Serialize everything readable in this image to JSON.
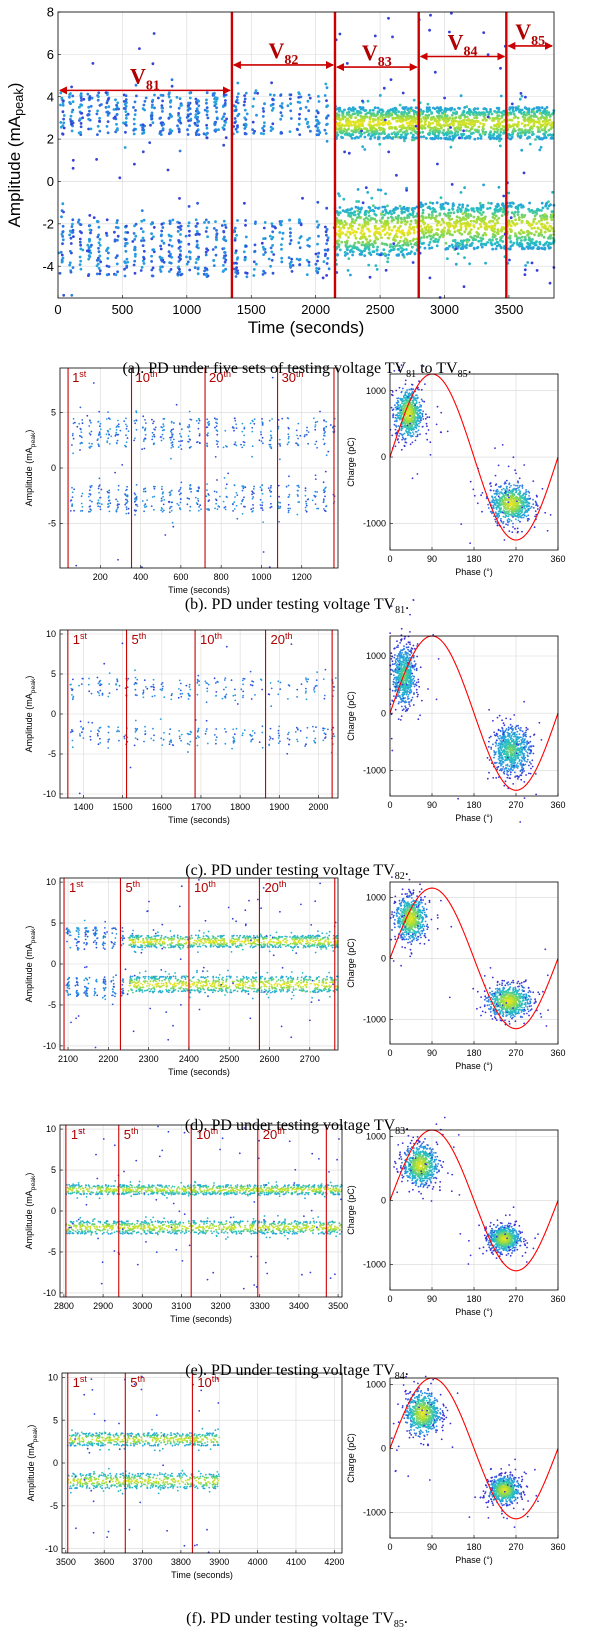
{
  "captions": {
    "a": {
      "prefix": "(a). PD under five sets of testing voltage TV",
      "s1": "81",
      "mid": " to TV",
      "s2": "85",
      "suffix": "."
    },
    "b": {
      "prefix": "(b). PD under testing voltage TV",
      "sub": "81",
      "suffix": "."
    },
    "c": {
      "prefix": "(c). PD under testing voltage TV",
      "sub": "82",
      "suffix": "."
    },
    "d": {
      "prefix": "(d). PD under testing voltage TV",
      "sub": "83",
      "suffix": "."
    },
    "e": {
      "prefix": "(e). PD under testing voltage TV",
      "sub": "84",
      "suffix": "."
    },
    "f": {
      "prefix": "(f). PD under testing voltage TV",
      "sub": "85",
      "suffix": "."
    }
  },
  "colors": {
    "marker_line": "#cc0000",
    "sine": "#ff0000",
    "grid": "#d8d8d8",
    "dense": "#f4e61e",
    "mid": "#27c2bd",
    "sparse": "#3a2bd6",
    "label_red": "#b00000"
  },
  "chart_data": [
    {
      "id": "a",
      "type": "scatter",
      "xlabel": "Time (seconds)",
      "ylabel": "Amplitude (mA",
      "ylabel_sub": "peak",
      "ylabel_end": ")",
      "xlim": [
        0,
        3850
      ],
      "ylim": [
        -5.5,
        8
      ],
      "xticks": [
        0,
        500,
        1000,
        1500,
        2000,
        2500,
        3000,
        3500
      ],
      "yticks": [
        -4,
        -2,
        0,
        2,
        4,
        6,
        8
      ],
      "markers": [
        1350,
        2150,
        2800,
        3480
      ],
      "stages": [
        {
          "label": "V",
          "sub": "81",
          "start": 0,
          "end": 1350
        },
        {
          "label": "V",
          "sub": "82",
          "start": 1350,
          "end": 2150
        },
        {
          "label": "V",
          "sub": "83",
          "start": 2150,
          "end": 2800
        },
        {
          "label": "V",
          "sub": "84",
          "start": 2800,
          "end": 3480
        },
        {
          "label": "V",
          "sub": "85",
          "start": 3480,
          "end": 3850
        }
      ],
      "bands": [
        {
          "start": 0,
          "end": 1350,
          "pos": [
            2.2,
            4.2
          ],
          "neg": [
            -4.5,
            -1.8
          ],
          "density": 0.35,
          "clustered": true
        },
        {
          "start": 1350,
          "end": 2150,
          "pos": [
            2.2,
            4.2
          ],
          "neg": [
            -4.5,
            -1.8
          ],
          "density": 0.25,
          "clustered": true
        },
        {
          "start": 2150,
          "end": 2800,
          "pos": [
            2.0,
            3.5
          ],
          "neg": [
            -3.5,
            -1.2
          ],
          "density": 1.0,
          "clustered": false
        },
        {
          "start": 2800,
          "end": 3480,
          "pos": [
            2.0,
            3.5
          ],
          "neg": [
            -3.2,
            -1.0
          ],
          "density": 0.9,
          "clustered": false
        },
        {
          "start": 3480,
          "end": 3850,
          "pos": [
            2.0,
            3.5
          ],
          "neg": [
            -3.2,
            -1.0
          ],
          "density": 0.9,
          "clustered": false
        }
      ]
    },
    {
      "id": "b",
      "type": "scatter",
      "xlabel": "Time (seconds)",
      "ylabel": "Amplitude (mA",
      "ylabel_sub": "peak",
      "ylabel_end": ")",
      "xlim": [
        0,
        1380
      ],
      "ylim": [
        -9,
        9
      ],
      "xticks": [
        200,
        400,
        600,
        800,
        1000,
        1200
      ],
      "yticks": [
        -5,
        0,
        5
      ],
      "markers": [
        40,
        355,
        720,
        1080,
        1360
      ],
      "cycle_labels": [
        {
          "n": "1",
          "suf": "st",
          "x": 45
        },
        {
          "n": "10",
          "suf": "th",
          "x": 360
        },
        {
          "n": "20",
          "suf": "th",
          "x": 725
        },
        {
          "n": "30",
          "suf": "th",
          "x": 1085
        }
      ],
      "bands": [
        {
          "start": 40,
          "end": 1360,
          "pos": [
            1.8,
            4.5
          ],
          "neg": [
            -4.0,
            -1.5
          ],
          "density": 0.35,
          "clustered": true
        }
      ]
    },
    {
      "id": "c",
      "type": "scatter",
      "xlabel": "Time (seconds)",
      "ylabel": "Amplitude (mA",
      "ylabel_sub": "peak",
      "ylabel_end": ")",
      "xlim": [
        1340,
        2050
      ],
      "ylim": [
        -10.5,
        10.5
      ],
      "xticks": [
        1400,
        1500,
        1600,
        1700,
        1800,
        1900,
        2000
      ],
      "yticks": [
        -10,
        -5,
        0,
        5,
        10
      ],
      "markers": [
        1360,
        1510,
        1685,
        1865,
        2035
      ],
      "cycle_labels": [
        {
          "n": "1",
          "suf": "st",
          "x": 1365
        },
        {
          "n": "5",
          "suf": "th",
          "x": 1515
        },
        {
          "n": "10",
          "suf": "th",
          "x": 1690
        },
        {
          "n": "20",
          "suf": "th",
          "x": 1870
        }
      ],
      "bands": [
        {
          "start": 1360,
          "end": 2050,
          "pos": [
            1.8,
            4.5
          ],
          "neg": [
            -4.0,
            -1.5
          ],
          "density": 0.18,
          "clustered": true
        }
      ]
    },
    {
      "id": "d",
      "type": "scatter",
      "xlabel": "Time (seconds)",
      "ylabel": "Amplitude (mA",
      "ylabel_sub": "peak",
      "ylabel_end": ")",
      "xlim": [
        2080,
        2770
      ],
      "ylim": [
        -10.5,
        10.5
      ],
      "xticks": [
        2100,
        2200,
        2300,
        2400,
        2500,
        2600,
        2700
      ],
      "yticks": [
        -10,
        -5,
        0,
        5,
        10
      ],
      "markers": [
        2090,
        2230,
        2400,
        2575,
        2762
      ],
      "cycle_labels": [
        {
          "n": "1",
          "suf": "st",
          "x": 2095
        },
        {
          "n": "5",
          "suf": "th",
          "x": 2235
        },
        {
          "n": "10",
          "suf": "th",
          "x": 2405
        },
        {
          "n": "20",
          "suf": "th",
          "x": 2580
        }
      ],
      "bands": [
        {
          "start": 2090,
          "end": 2250,
          "pos": [
            1.8,
            4.5
          ],
          "neg": [
            -4.0,
            -1.5
          ],
          "density": 0.5,
          "clustered": true
        },
        {
          "start": 2250,
          "end": 2770,
          "pos": [
            2.0,
            3.5
          ],
          "neg": [
            -3.5,
            -1.5
          ],
          "density": 1.0,
          "clustered": false
        }
      ]
    },
    {
      "id": "e",
      "type": "scatter",
      "xlabel": "Time (seconds)",
      "ylabel": "Amplitude (mA",
      "ylabel_sub": "peak",
      "ylabel_end": ")",
      "xlim": [
        2790,
        3510
      ],
      "ylim": [
        -10.5,
        10.5
      ],
      "xticks": [
        2800,
        2900,
        3000,
        3100,
        3200,
        3300,
        3400,
        3500
      ],
      "yticks": [
        -10,
        -5,
        0,
        5,
        10
      ],
      "markers": [
        2805,
        2940,
        3125,
        3295,
        3470
      ],
      "cycle_labels": [
        {
          "n": "1",
          "suf": "st",
          "x": 2810
        },
        {
          "n": "5",
          "suf": "th",
          "x": 2945
        },
        {
          "n": "10",
          "suf": "th",
          "x": 3130
        },
        {
          "n": "20",
          "suf": "th",
          "x": 3300
        }
      ],
      "bands": [
        {
          "start": 2805,
          "end": 3510,
          "pos": [
            2.0,
            3.2
          ],
          "neg": [
            -2.8,
            -1.2
          ],
          "density": 0.9,
          "clustered": false
        }
      ]
    },
    {
      "id": "f",
      "type": "scatter",
      "xlabel": "Time (seconds)",
      "ylabel": "Amplitude (mA",
      "ylabel_sub": "peak",
      "ylabel_end": ")",
      "xlim": [
        3490,
        4220
      ],
      "ylim": [
        -10.5,
        10.5
      ],
      "xticks": [
        3500,
        3600,
        3700,
        3800,
        3900,
        4000,
        4100,
        4200
      ],
      "yticks": [
        -10,
        -5,
        0,
        5,
        10
      ],
      "markers": [
        3505,
        3655,
        3830
      ],
      "cycle_labels": [
        {
          "n": "1",
          "suf": "st",
          "x": 3510
        },
        {
          "n": "5",
          "suf": "th",
          "x": 3660
        },
        {
          "n": "10",
          "suf": "th",
          "x": 3835
        }
      ],
      "bands": [
        {
          "start": 3505,
          "end": 3900,
          "pos": [
            2.0,
            3.5
          ],
          "neg": [
            -3.0,
            -1.2
          ],
          "density": 0.9,
          "clustered": false
        }
      ]
    },
    {
      "id": "b2",
      "type": "scatter",
      "xlabel": "Phase (°)",
      "ylabel": "Charge (pC)",
      "xlim": [
        0,
        360
      ],
      "ylim": [
        -1400,
        1250
      ],
      "xticks": [
        0,
        90,
        180,
        270,
        360
      ],
      "yticks": [
        -1000,
        0,
        1000
      ],
      "sine_amplitude": 1250,
      "clusters": [
        {
          "cx": 40,
          "cy": 650,
          "sx": 14,
          "sy": 180,
          "n": 1,
          "peak": 1
        },
        {
          "cx": 260,
          "cy": -700,
          "sx": 22,
          "sy": 140,
          "n": 1,
          "peak": 1
        }
      ]
    },
    {
      "id": "c2",
      "type": "scatter",
      "xlabel": "Phase (°)",
      "ylabel": "Charge (pC)",
      "xlim": [
        0,
        360
      ],
      "ylim": [
        -1450,
        1350
      ],
      "xticks": [
        0,
        90,
        180,
        270,
        360
      ],
      "yticks": [
        -1000,
        0,
        1000
      ],
      "sine_amplitude": 1350,
      "clusters": [
        {
          "cx": 30,
          "cy": 650,
          "sx": 12,
          "sy": 250,
          "n": 1,
          "peak": 0.7
        },
        {
          "cx": 260,
          "cy": -650,
          "sx": 20,
          "sy": 200,
          "n": 1,
          "peak": 0.7
        }
      ]
    },
    {
      "id": "d2",
      "type": "scatter",
      "xlabel": "Phase (°)",
      "ylabel": "Charge (pC)",
      "xlim": [
        0,
        360
      ],
      "ylim": [
        -1400,
        1250
      ],
      "xticks": [
        0,
        90,
        180,
        270,
        360
      ],
      "yticks": [
        -1000,
        0,
        1000
      ],
      "sine_amplitude": 1150,
      "clusters": [
        {
          "cx": 45,
          "cy": 650,
          "sx": 16,
          "sy": 170,
          "n": 1,
          "peak": 1
        },
        {
          "cx": 255,
          "cy": -700,
          "sx": 22,
          "sy": 130,
          "n": 1,
          "peak": 1
        }
      ]
    },
    {
      "id": "e2",
      "type": "scatter",
      "xlabel": "Phase (°)",
      "ylabel": "Charge (pC)",
      "xlim": [
        0,
        360
      ],
      "ylim": [
        -1400,
        1100
      ],
      "xticks": [
        0,
        90,
        180,
        270,
        360
      ],
      "yticks": [
        -1000,
        0,
        1000
      ],
      "sine_amplitude": 1100,
      "clusters": [
        {
          "cx": 65,
          "cy": 550,
          "sx": 18,
          "sy": 150,
          "n": 1,
          "peak": 1
        },
        {
          "cx": 245,
          "cy": -600,
          "sx": 16,
          "sy": 100,
          "n": 1,
          "peak": 1
        }
      ]
    },
    {
      "id": "f2",
      "type": "scatter",
      "xlabel": "Phase (°)",
      "ylabel": "Charge (pC)",
      "xlim": [
        0,
        360
      ],
      "ylim": [
        -1400,
        1100
      ],
      "xticks": [
        0,
        90,
        180,
        270,
        360
      ],
      "yticks": [
        -1000,
        0,
        1000
      ],
      "sine_amplitude": 1100,
      "clusters": [
        {
          "cx": 70,
          "cy": 550,
          "sx": 18,
          "sy": 160,
          "n": 1,
          "peak": 1
        },
        {
          "cx": 245,
          "cy": -650,
          "sx": 16,
          "sy": 100,
          "n": 1,
          "peak": 1
        }
      ]
    }
  ]
}
